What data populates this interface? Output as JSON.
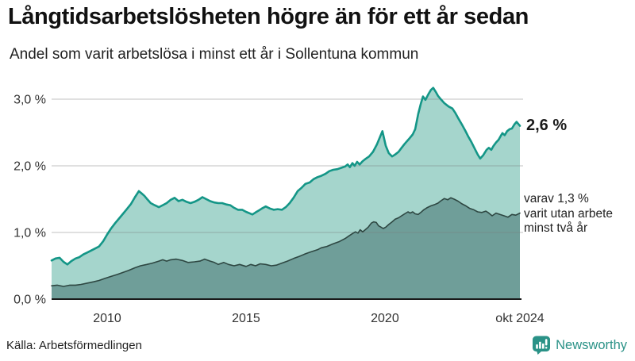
{
  "header": {
    "title": "Långtidsarbetslösheten högre än för ett år sedan",
    "subtitle": "Andel som varit arbetslösa i minst ett år i Sollentuna kommun"
  },
  "annotations": {
    "latest_total": "2,6 %",
    "subseries_line1": "varav 1,3 %",
    "subseries_line2": "varit utan arbete",
    "subseries_line3": "minst två år"
  },
  "source": {
    "label": "Källa: Arbetsförmedlingen"
  },
  "branding": {
    "name": "Newsworthy",
    "color": "#2a9287",
    "icon": "newsworthy-speech-bubble-chart-icon"
  },
  "colors": {
    "total_line": "#149687",
    "total_fill": "#a5d5cc",
    "two_year_line": "#2e4742",
    "two_year_fill": "#6f9e99",
    "gridline": "#cccccc",
    "axis_line": "#1a1a1a",
    "tick_text": "#333333"
  },
  "chart_data": {
    "type": "area",
    "title": "Långtidsarbetslösheten högre än för ett år sedan",
    "subtitle": "Andel som varit arbetslösa i minst ett år i Sollentuna kommun",
    "unit": "%",
    "grid": "horizontal",
    "legend_position": "right-annotations",
    "x_axis": {
      "range": [
        2008.0,
        2024.86
      ],
      "ticks": [
        {
          "value": 2010,
          "label": "2010"
        },
        {
          "value": 2015,
          "label": "2015"
        },
        {
          "value": 2020,
          "label": "2020"
        },
        {
          "value": 2024.86,
          "label": "okt 2024"
        }
      ]
    },
    "y_axis": {
      "range": [
        0,
        3.0
      ],
      "ticks": [
        {
          "value": 0,
          "label": "0,0 %"
        },
        {
          "value": 1,
          "label": "1,0 %"
        },
        {
          "value": 2,
          "label": "2,0 %"
        },
        {
          "value": 3,
          "label": "3,0 %"
        }
      ]
    },
    "series": [
      {
        "name": "Andel arbetslösa minst ett år",
        "latest_label": "2,6 %",
        "latest_value": 2.6,
        "line_color": "#149687",
        "fill_color": "#a5d5cc",
        "points": [
          [
            2008.0,
            0.58
          ],
          [
            2008.14,
            0.61
          ],
          [
            2008.29,
            0.62
          ],
          [
            2008.43,
            0.56
          ],
          [
            2008.57,
            0.52
          ],
          [
            2008.71,
            0.57
          ],
          [
            2008.86,
            0.61
          ],
          [
            2009.0,
            0.63
          ],
          [
            2009.14,
            0.67
          ],
          [
            2009.29,
            0.7
          ],
          [
            2009.43,
            0.73
          ],
          [
            2009.57,
            0.76
          ],
          [
            2009.71,
            0.79
          ],
          [
            2009.86,
            0.87
          ],
          [
            2010.0,
            0.97
          ],
          [
            2010.14,
            1.06
          ],
          [
            2010.29,
            1.14
          ],
          [
            2010.43,
            1.21
          ],
          [
            2010.57,
            1.28
          ],
          [
            2010.71,
            1.35
          ],
          [
            2010.86,
            1.43
          ],
          [
            2011.0,
            1.53
          ],
          [
            2011.14,
            1.62
          ],
          [
            2011.23,
            1.59
          ],
          [
            2011.34,
            1.55
          ],
          [
            2011.46,
            1.49
          ],
          [
            2011.57,
            1.44
          ],
          [
            2011.71,
            1.41
          ],
          [
            2011.86,
            1.38
          ],
          [
            2012.0,
            1.41
          ],
          [
            2012.14,
            1.44
          ],
          [
            2012.29,
            1.49
          ],
          [
            2012.43,
            1.52
          ],
          [
            2012.57,
            1.47
          ],
          [
            2012.71,
            1.49
          ],
          [
            2012.86,
            1.46
          ],
          [
            2013.0,
            1.44
          ],
          [
            2013.14,
            1.46
          ],
          [
            2013.29,
            1.49
          ],
          [
            2013.43,
            1.53
          ],
          [
            2013.57,
            1.5
          ],
          [
            2013.71,
            1.47
          ],
          [
            2013.86,
            1.45
          ],
          [
            2014.0,
            1.44
          ],
          [
            2014.14,
            1.44
          ],
          [
            2014.29,
            1.42
          ],
          [
            2014.43,
            1.41
          ],
          [
            2014.57,
            1.37
          ],
          [
            2014.71,
            1.34
          ],
          [
            2014.86,
            1.34
          ],
          [
            2015.0,
            1.31
          ],
          [
            2015.11,
            1.29
          ],
          [
            2015.23,
            1.27
          ],
          [
            2015.34,
            1.3
          ],
          [
            2015.46,
            1.33
          ],
          [
            2015.57,
            1.36
          ],
          [
            2015.71,
            1.39
          ],
          [
            2015.86,
            1.36
          ],
          [
            2016.0,
            1.34
          ],
          [
            2016.14,
            1.35
          ],
          [
            2016.29,
            1.34
          ],
          [
            2016.43,
            1.38
          ],
          [
            2016.57,
            1.44
          ],
          [
            2016.71,
            1.52
          ],
          [
            2016.86,
            1.62
          ],
          [
            2017.0,
            1.67
          ],
          [
            2017.14,
            1.73
          ],
          [
            2017.29,
            1.75
          ],
          [
            2017.43,
            1.8
          ],
          [
            2017.57,
            1.83
          ],
          [
            2017.71,
            1.85
          ],
          [
            2017.86,
            1.88
          ],
          [
            2018.0,
            1.92
          ],
          [
            2018.14,
            1.94
          ],
          [
            2018.29,
            1.95
          ],
          [
            2018.43,
            1.97
          ],
          [
            2018.57,
            1.99
          ],
          [
            2018.66,
            2.02
          ],
          [
            2018.74,
            1.98
          ],
          [
            2018.83,
            2.04
          ],
          [
            2018.91,
            2.0
          ],
          [
            2019.0,
            2.06
          ],
          [
            2019.09,
            2.02
          ],
          [
            2019.2,
            2.07
          ],
          [
            2019.29,
            2.1
          ],
          [
            2019.43,
            2.14
          ],
          [
            2019.57,
            2.21
          ],
          [
            2019.71,
            2.32
          ],
          [
            2019.83,
            2.44
          ],
          [
            2019.91,
            2.52
          ],
          [
            2020.03,
            2.3
          ],
          [
            2020.14,
            2.19
          ],
          [
            2020.26,
            2.14
          ],
          [
            2020.37,
            2.17
          ],
          [
            2020.49,
            2.21
          ],
          [
            2020.6,
            2.27
          ],
          [
            2020.71,
            2.33
          ],
          [
            2020.86,
            2.4
          ],
          [
            2021.0,
            2.47
          ],
          [
            2021.09,
            2.55
          ],
          [
            2021.2,
            2.78
          ],
          [
            2021.29,
            2.93
          ],
          [
            2021.37,
            3.04
          ],
          [
            2021.46,
            2.99
          ],
          [
            2021.57,
            3.08
          ],
          [
            2021.66,
            3.14
          ],
          [
            2021.74,
            3.17
          ],
          [
            2021.83,
            3.11
          ],
          [
            2021.91,
            3.05
          ],
          [
            2022.03,
            2.99
          ],
          [
            2022.14,
            2.94
          ],
          [
            2022.29,
            2.89
          ],
          [
            2022.43,
            2.86
          ],
          [
            2022.54,
            2.79
          ],
          [
            2022.66,
            2.7
          ],
          [
            2022.77,
            2.62
          ],
          [
            2022.89,
            2.53
          ],
          [
            2023.0,
            2.44
          ],
          [
            2023.11,
            2.36
          ],
          [
            2023.23,
            2.26
          ],
          [
            2023.34,
            2.17
          ],
          [
            2023.43,
            2.11
          ],
          [
            2023.54,
            2.16
          ],
          [
            2023.66,
            2.24
          ],
          [
            2023.74,
            2.27
          ],
          [
            2023.83,
            2.24
          ],
          [
            2023.91,
            2.3
          ],
          [
            2024.0,
            2.35
          ],
          [
            2024.09,
            2.39
          ],
          [
            2024.17,
            2.45
          ],
          [
            2024.23,
            2.49
          ],
          [
            2024.31,
            2.46
          ],
          [
            2024.4,
            2.52
          ],
          [
            2024.49,
            2.55
          ],
          [
            2024.57,
            2.56
          ],
          [
            2024.66,
            2.62
          ],
          [
            2024.74,
            2.66
          ],
          [
            2024.86,
            2.6
          ]
        ]
      },
      {
        "name": "varav utan arbete minst två år",
        "latest_label": "varav 1,3 % varit utan arbete minst två år",
        "latest_value": 1.3,
        "line_color": "#2e4742",
        "fill_color": "#6f9e99",
        "points": [
          [
            2008.0,
            0.2
          ],
          [
            2008.2,
            0.21
          ],
          [
            2008.43,
            0.19
          ],
          [
            2008.66,
            0.21
          ],
          [
            2008.86,
            0.21
          ],
          [
            2009.06,
            0.22
          ],
          [
            2009.29,
            0.24
          ],
          [
            2009.51,
            0.26
          ],
          [
            2009.71,
            0.28
          ],
          [
            2009.91,
            0.31
          ],
          [
            2010.14,
            0.34
          ],
          [
            2010.37,
            0.37
          ],
          [
            2010.57,
            0.4
          ],
          [
            2010.77,
            0.43
          ],
          [
            2011.0,
            0.47
          ],
          [
            2011.2,
            0.5
          ],
          [
            2011.43,
            0.52
          ],
          [
            2011.63,
            0.54
          ],
          [
            2011.86,
            0.57
          ],
          [
            2012.0,
            0.59
          ],
          [
            2012.14,
            0.57
          ],
          [
            2012.29,
            0.59
          ],
          [
            2012.49,
            0.6
          ],
          [
            2012.71,
            0.58
          ],
          [
            2012.91,
            0.55
          ],
          [
            2013.14,
            0.56
          ],
          [
            2013.34,
            0.57
          ],
          [
            2013.51,
            0.6
          ],
          [
            2013.71,
            0.57
          ],
          [
            2013.86,
            0.55
          ],
          [
            2014.0,
            0.52
          ],
          [
            2014.2,
            0.55
          ],
          [
            2014.37,
            0.52
          ],
          [
            2014.57,
            0.5
          ],
          [
            2014.77,
            0.52
          ],
          [
            2015.0,
            0.49
          ],
          [
            2015.17,
            0.52
          ],
          [
            2015.34,
            0.5
          ],
          [
            2015.51,
            0.53
          ],
          [
            2015.71,
            0.52
          ],
          [
            2015.91,
            0.5
          ],
          [
            2016.09,
            0.51
          ],
          [
            2016.29,
            0.54
          ],
          [
            2016.49,
            0.57
          ],
          [
            2016.71,
            0.61
          ],
          [
            2016.91,
            0.64
          ],
          [
            2017.14,
            0.68
          ],
          [
            2017.34,
            0.71
          ],
          [
            2017.57,
            0.74
          ],
          [
            2017.71,
            0.77
          ],
          [
            2017.91,
            0.79
          ],
          [
            2018.14,
            0.83
          ],
          [
            2018.34,
            0.86
          ],
          [
            2018.57,
            0.91
          ],
          [
            2018.71,
            0.95
          ],
          [
            2018.86,
            0.99
          ],
          [
            2018.94,
            1.01
          ],
          [
            2019.03,
            0.99
          ],
          [
            2019.11,
            1.04
          ],
          [
            2019.2,
            1.01
          ],
          [
            2019.29,
            1.04
          ],
          [
            2019.4,
            1.08
          ],
          [
            2019.51,
            1.14
          ],
          [
            2019.6,
            1.16
          ],
          [
            2019.69,
            1.15
          ],
          [
            2019.77,
            1.1
          ],
          [
            2019.86,
            1.08
          ],
          [
            2019.94,
            1.06
          ],
          [
            2020.03,
            1.08
          ],
          [
            2020.14,
            1.12
          ],
          [
            2020.26,
            1.16
          ],
          [
            2020.37,
            1.2
          ],
          [
            2020.49,
            1.22
          ],
          [
            2020.6,
            1.25
          ],
          [
            2020.71,
            1.28
          ],
          [
            2020.83,
            1.31
          ],
          [
            2020.91,
            1.29
          ],
          [
            2021.0,
            1.31
          ],
          [
            2021.09,
            1.28
          ],
          [
            2021.2,
            1.27
          ],
          [
            2021.29,
            1.3
          ],
          [
            2021.4,
            1.34
          ],
          [
            2021.51,
            1.37
          ],
          [
            2021.66,
            1.4
          ],
          [
            2021.8,
            1.42
          ],
          [
            2021.91,
            1.44
          ],
          [
            2022.0,
            1.47
          ],
          [
            2022.14,
            1.51
          ],
          [
            2022.26,
            1.49
          ],
          [
            2022.37,
            1.52
          ],
          [
            2022.49,
            1.5
          ],
          [
            2022.63,
            1.47
          ],
          [
            2022.77,
            1.43
          ],
          [
            2022.91,
            1.4
          ],
          [
            2023.06,
            1.36
          ],
          [
            2023.2,
            1.34
          ],
          [
            2023.34,
            1.31
          ],
          [
            2023.49,
            1.3
          ],
          [
            2023.63,
            1.32
          ],
          [
            2023.71,
            1.3
          ],
          [
            2023.86,
            1.25
          ],
          [
            2024.0,
            1.29
          ],
          [
            2024.14,
            1.27
          ],
          [
            2024.29,
            1.25
          ],
          [
            2024.43,
            1.23
          ],
          [
            2024.57,
            1.27
          ],
          [
            2024.71,
            1.26
          ],
          [
            2024.86,
            1.29
          ]
        ]
      }
    ]
  }
}
